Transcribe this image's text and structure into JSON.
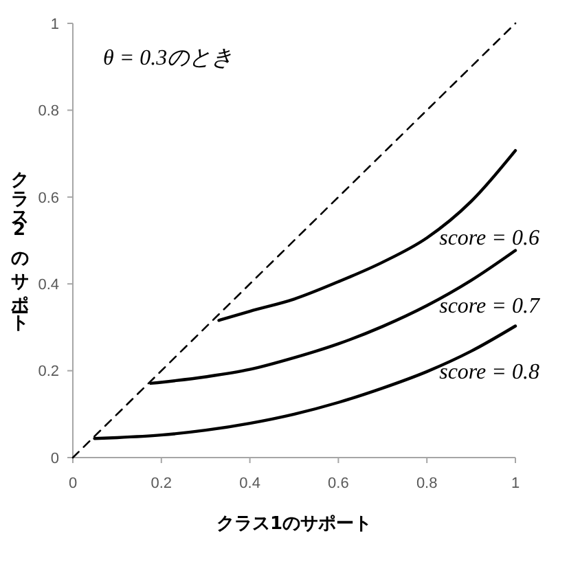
{
  "chart_data": {
    "type": "line",
    "xlabel": "クラス1のサポート",
    "ylabel": "クラス2のサポート",
    "xlim": [
      0,
      1
    ],
    "ylim": [
      0,
      1
    ],
    "xticks": [
      0,
      0.2,
      0.4,
      0.6,
      0.8,
      1
    ],
    "yticks": [
      0,
      0.2,
      0.4,
      0.6,
      0.8,
      1
    ],
    "grid": false,
    "marker": "none",
    "annotations": [
      "θ = 0.3のとき"
    ],
    "series": [
      {
        "color": "#000000",
        "line_style": "dashed",
        "x": [
          0,
          1
        ],
        "values": [
          0,
          1
        ]
      },
      {
        "name": "score = 0.6",
        "color": "#000000",
        "x": [
          0.33,
          0.4,
          0.5,
          0.6,
          0.7,
          0.8,
          0.9,
          1
        ],
        "values": [
          0.316,
          0.337,
          0.365,
          0.405,
          0.45,
          0.506,
          0.59,
          0.707
        ]
      },
      {
        "name": "score = 0.7",
        "color": "#000000",
        "x": [
          0.176,
          0.3,
          0.4,
          0.5,
          0.6,
          0.7,
          0.8,
          0.9,
          1
        ],
        "values": [
          0.171,
          0.186,
          0.203,
          0.23,
          0.262,
          0.302,
          0.35,
          0.408,
          0.477
        ]
      },
      {
        "name": "score = 0.8",
        "color": "#000000",
        "x": [
          0.049,
          0.1,
          0.2,
          0.3,
          0.4,
          0.5,
          0.6,
          0.7,
          0.8,
          0.9,
          1
        ],
        "values": [
          0.044,
          0.046,
          0.052,
          0.063,
          0.079,
          0.1,
          0.127,
          0.16,
          0.198,
          0.245,
          0.303
        ]
      }
    ]
  }
}
